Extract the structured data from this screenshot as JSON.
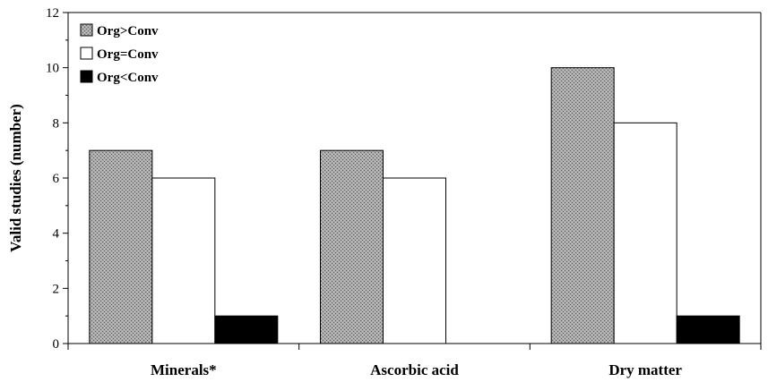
{
  "chart_data": {
    "type": "bar",
    "title": "",
    "xlabel": "",
    "ylabel": "Valid studies (number)",
    "categories": [
      "Minerals*",
      "Ascorbic acid",
      "Dry matter"
    ],
    "series": [
      {
        "name": "Org>Conv",
        "values": [
          7,
          7,
          10
        ],
        "color": "#a0a0a0",
        "pattern": "stipple"
      },
      {
        "name": "Org=Conv",
        "values": [
          6,
          6,
          8
        ],
        "color": "#ffffff"
      },
      {
        "name": "Org<Conv",
        "values": [
          1,
          0,
          1
        ],
        "color": "#000000"
      }
    ],
    "ylim": [
      0,
      12
    ],
    "yticks": [
      0,
      2,
      4,
      6,
      8,
      10,
      12
    ],
    "grid": false,
    "legend": "top-left"
  }
}
